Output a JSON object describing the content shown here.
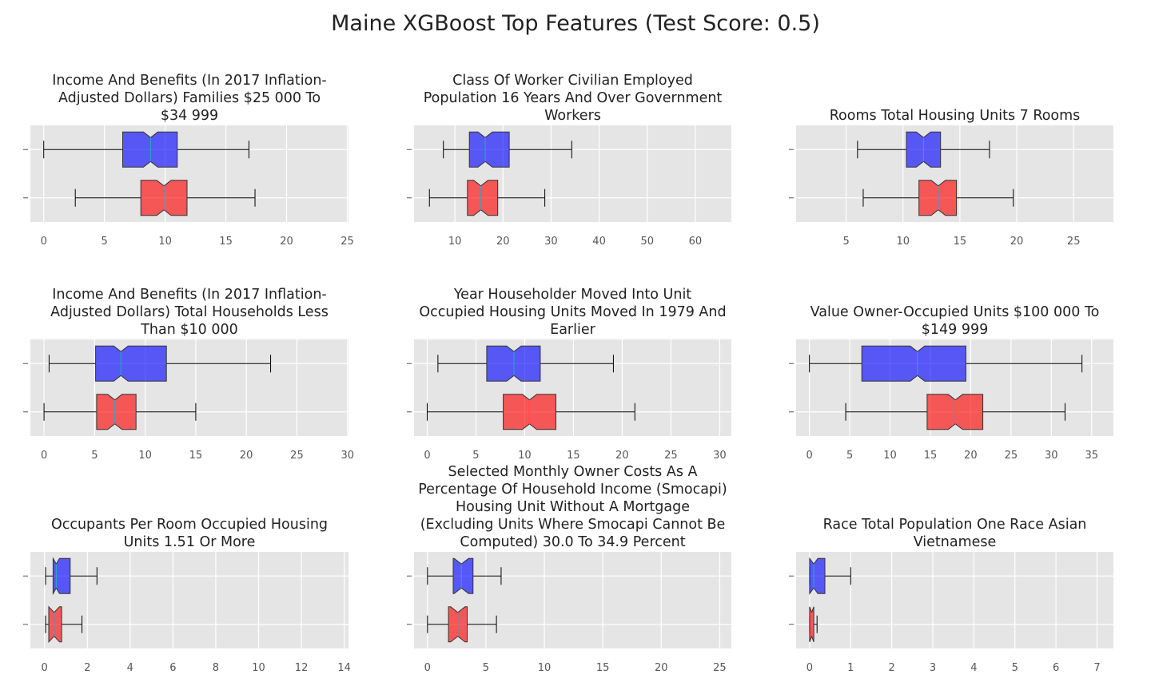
{
  "title": "Maine XGBoost Top Features (Test Score: 0.5)",
  "colors": {
    "blue": "#0000ff",
    "red": "#ff0000",
    "panel": "#e5e5e5",
    "grid": "#ffffff"
  },
  "chart_data": [
    {
      "type": "boxplot",
      "title": [
        "Income And Benefits (In 2017 Inflation-",
        "Adjusted Dollars) Families $25 000 To",
        "$34 999"
      ],
      "xlim": [
        -1.1,
        25.1
      ],
      "xticks": [
        0,
        5,
        10,
        15,
        20,
        25
      ],
      "series": [
        {
          "color": "blue",
          "whislo": 0,
          "q1": 6.5,
          "med": 8.8,
          "q3": 11.0,
          "whishi": 16.9
        },
        {
          "color": "red",
          "whislo": 2.6,
          "q1": 8.0,
          "med": 9.9,
          "q3": 11.8,
          "whishi": 17.4
        }
      ]
    },
    {
      "type": "boxplot",
      "title": [
        "Class Of Worker Civilian Employed",
        "Population 16 Years And Over Government",
        "Workers"
      ],
      "xlim": [
        1.5,
        67.5
      ],
      "xticks": [
        10,
        20,
        30,
        40,
        50,
        60
      ],
      "series": [
        {
          "color": "blue",
          "whislo": 7.6,
          "q1": 13.0,
          "med": 16.3,
          "q3": 21.3,
          "whishi": 34.3
        },
        {
          "color": "red",
          "whislo": 4.7,
          "q1": 12.6,
          "med": 15.4,
          "q3": 18.9,
          "whishi": 28.7
        }
      ]
    },
    {
      "type": "boxplot",
      "title": [
        "Rooms Total Housing Units 7 Rooms"
      ],
      "xlim": [
        0.6,
        28.5
      ],
      "xticks": [
        5,
        10,
        15,
        20,
        25
      ],
      "series": [
        {
          "color": "blue",
          "whislo": 6.0,
          "q1": 10.3,
          "med": 11.8,
          "q3": 13.3,
          "whishi": 17.6
        },
        {
          "color": "red",
          "whislo": 6.5,
          "q1": 11.4,
          "med": 13.1,
          "q3": 14.7,
          "whishi": 19.7
        }
      ]
    },
    {
      "type": "boxplot",
      "title": [
        "Income And Benefits (In 2017 Inflation-",
        "Adjusted Dollars) Total Households Less",
        "Than $10 000"
      ],
      "xlim": [
        -1.35,
        30.1
      ],
      "xticks": [
        0,
        5,
        10,
        15,
        20,
        25,
        30
      ],
      "series": [
        {
          "color": "blue",
          "whislo": 0.5,
          "q1": 5.1,
          "med": 7.6,
          "q3": 12.1,
          "whishi": 22.4
        },
        {
          "color": "red",
          "whislo": 0,
          "q1": 5.2,
          "med": 7.0,
          "q3": 9.1,
          "whishi": 15.0
        }
      ]
    },
    {
      "type": "boxplot",
      "title": [
        "Year Householder Moved Into Unit",
        "Occupied Housing Units Moved In 1979 And",
        "Earlier"
      ],
      "xlim": [
        -1.35,
        31.2
      ],
      "xticks": [
        0,
        5,
        10,
        15,
        20,
        25,
        30
      ],
      "series": [
        {
          "color": "blue",
          "whislo": 1.1,
          "q1": 6.1,
          "med": 8.9,
          "q3": 11.6,
          "whishi": 19.1
        },
        {
          "color": "red",
          "whislo": 0,
          "q1": 7.8,
          "med": 10.5,
          "q3": 13.2,
          "whishi": 21.3
        }
      ]
    },
    {
      "type": "boxplot",
      "title": [
        "Value Owner-Occupied Units $100 000 To",
        "$149 999"
      ],
      "xlim": [
        -1.65,
        37.7
      ],
      "xticks": [
        0,
        5,
        10,
        15,
        20,
        25,
        30,
        35
      ],
      "series": [
        {
          "color": "blue",
          "whislo": 0,
          "q1": 6.5,
          "med": 13.4,
          "q3": 19.4,
          "whishi": 33.8
        },
        {
          "color": "red",
          "whislo": 4.5,
          "q1": 14.6,
          "med": 18.1,
          "q3": 21.5,
          "whishi": 31.7
        }
      ]
    },
    {
      "type": "boxplot",
      "title": [
        "Occupants Per Room Occupied Housing",
        "Units 1.51 Or More"
      ],
      "xlim": [
        -0.66,
        14.2
      ],
      "xticks": [
        0,
        2,
        4,
        6,
        8,
        10,
        12,
        14
      ],
      "series": [
        {
          "color": "blue",
          "whislo": 0.05,
          "q1": 0.4,
          "med": 0.55,
          "q3": 1.2,
          "whishi": 2.45
        },
        {
          "color": "red",
          "whislo": 0.05,
          "q1": 0.2,
          "med": 0.45,
          "q3": 0.8,
          "whishi": 1.75
        }
      ]
    },
    {
      "type": "boxplot",
      "title": [
        "Selected Monthly Owner Costs As A",
        "Percentage Of Household Income (Smocapi)",
        "Housing Unit Without A Mortgage",
        "(Excluding Units Where Smocapi Cannot Be",
        "Computed) 30.0 To 34.9 Percent"
      ],
      "xlim": [
        -1.15,
        26.0
      ],
      "xticks": [
        0,
        5,
        10,
        15,
        20,
        25
      ],
      "series": [
        {
          "color": "blue",
          "whislo": 0,
          "q1": 2.2,
          "med": 2.9,
          "q3": 3.9,
          "whishi": 6.3
        },
        {
          "color": "red",
          "whislo": 0,
          "q1": 1.8,
          "med": 2.6,
          "q3": 3.4,
          "whishi": 5.9
        }
      ]
    },
    {
      "type": "boxplot",
      "title": [
        "Race Total Population One Race Asian",
        "Vietnamese"
      ],
      "xlim": [
        -0.33,
        7.4
      ],
      "xticks": [
        0,
        1,
        2,
        3,
        4,
        5,
        6,
        7
      ],
      "series": [
        {
          "color": "blue",
          "whislo": 0,
          "q1": 0.0,
          "med": 0.1,
          "q3": 0.37,
          "whishi": 1.0
        },
        {
          "color": "red",
          "whislo": 0,
          "q1": 0.0,
          "med": 0.05,
          "q3": 0.1,
          "whishi": 0.18
        }
      ]
    }
  ]
}
